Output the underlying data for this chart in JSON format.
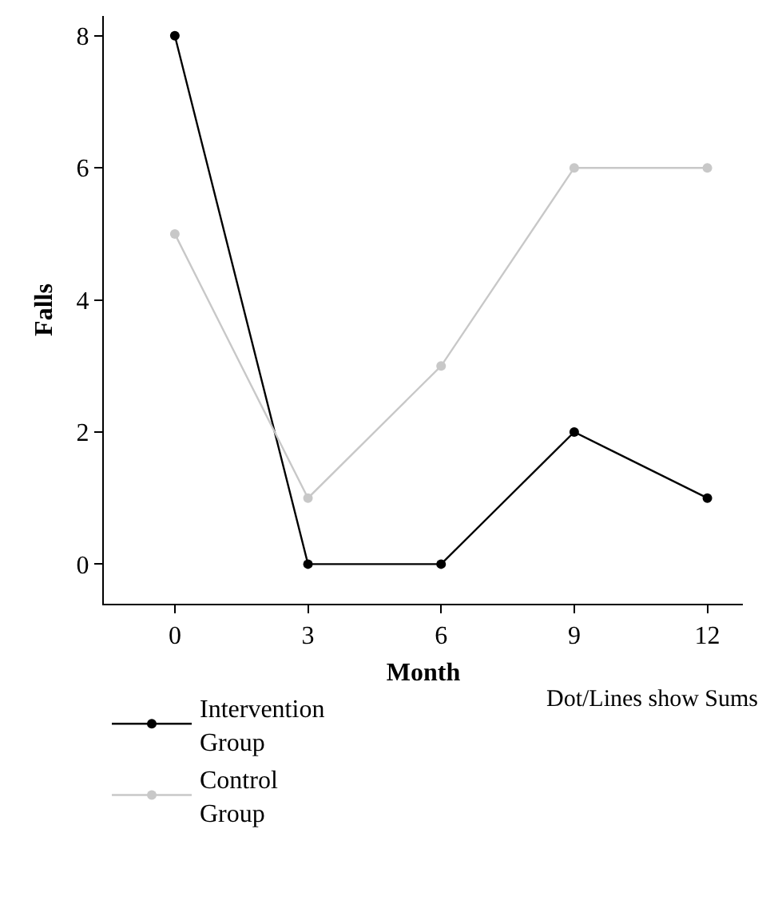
{
  "chart_data": {
    "type": "line",
    "xlabel": "Month",
    "ylabel": "Falls",
    "x": [
      0,
      3,
      6,
      9,
      12
    ],
    "series": [
      {
        "name": "Intervention Group",
        "color": "#000000",
        "values": [
          8,
          0,
          0,
          2,
          1
        ]
      },
      {
        "name": "Control Group",
        "color": "#c8c8c8",
        "values": [
          5,
          1,
          3,
          6,
          6
        ]
      }
    ],
    "xlim": [
      -1.6,
      12.8
    ],
    "xticks": [
      0,
      3,
      6,
      9,
      12
    ],
    "ylim": [
      -0.6,
      8.3
    ],
    "yticks": [
      0,
      2,
      4,
      6,
      8
    ],
    "grid": false,
    "legend": "bottom left",
    "marker": "circle",
    "line_style": "solid",
    "annotations": [
      "Dot/Lines show Sums"
    ]
  }
}
